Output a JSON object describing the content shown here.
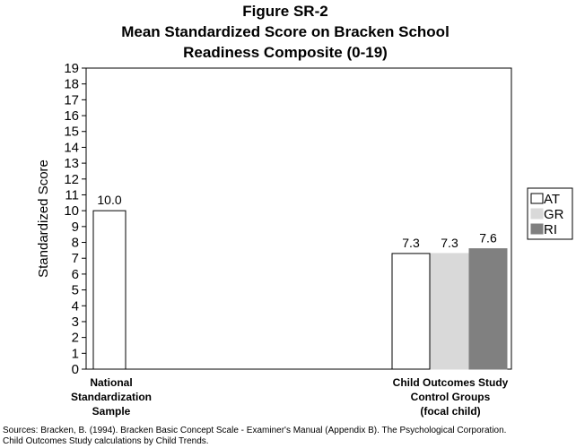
{
  "chart_data": {
    "type": "bar",
    "title": [
      "Figure SR-2",
      "Mean Standardized Score on Bracken School",
      "Readiness Composite (0-19)"
    ],
    "ylabel": "Standardized Score",
    "xlabel": "",
    "ylim": [
      0,
      19
    ],
    "yticks": [
      0,
      1,
      2,
      3,
      4,
      5,
      6,
      7,
      8,
      9,
      10,
      11,
      12,
      13,
      14,
      15,
      16,
      17,
      18,
      19
    ],
    "categories": [
      [
        "National",
        "Standardization",
        "Sample"
      ],
      [
        "Child Outcomes Study",
        "Control Groups",
        "(focal child)"
      ]
    ],
    "series": [
      {
        "name": "AT",
        "color": "#ffffff",
        "values": [
          10.0,
          7.3
        ],
        "labels": [
          "10.0",
          "7.3"
        ]
      },
      {
        "name": "GR",
        "color": "#d9d9d9",
        "values": [
          null,
          7.3
        ],
        "labels": [
          null,
          "7.3"
        ]
      },
      {
        "name": "RI",
        "color": "#808080",
        "values": [
          null,
          7.6
        ],
        "labels": [
          null,
          "7.6"
        ]
      }
    ],
    "grid": false,
    "legend_position": "right"
  },
  "sources": [
    "Sources:  Bracken, B. (1994).  Bracken Basic Concept Scale - Examiner's Manual (Appendix B).  The Psychological Corporation.",
    "Child Outcomes Study calculations by Child Trends."
  ]
}
